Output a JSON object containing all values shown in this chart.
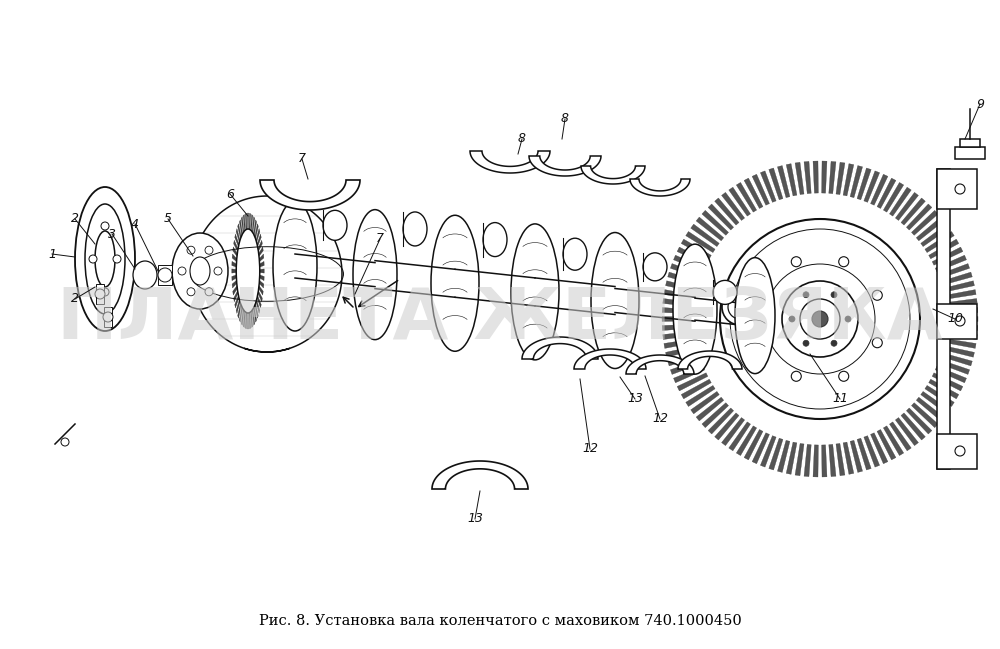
{
  "title": "Рис. 8. Установка вала коленчатого с маховиком 740.1000450",
  "watermark": "ПЛАНЕТА ЖЕЛЕЗЯКА",
  "bg_color": "#ffffff",
  "title_fontsize": 10.5,
  "watermark_fontsize": 52,
  "watermark_color": "#cccccc",
  "watermark_alpha": 0.55,
  "figsize": [
    10.0,
    6.49
  ],
  "dpi": 100,
  "line_color": "#111111",
  "label_fontsize": 9,
  "lw": 1.1
}
